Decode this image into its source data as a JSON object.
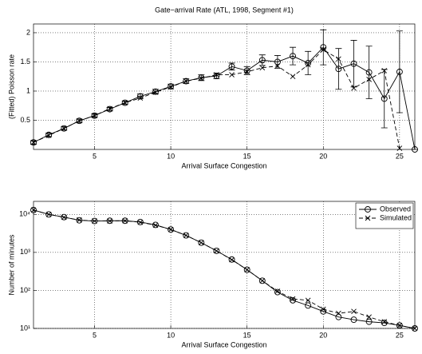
{
  "chart_data": [
    {
      "type": "line",
      "title": "Gate−arrival Rate (ATL, 1998, Segment #1)",
      "x_label": "Arrival Surface Congestion",
      "y_label": "(Fitted) Poisson rate",
      "x": [
        1,
        2,
        3,
        4,
        5,
        6,
        7,
        8,
        9,
        10,
        11,
        12,
        13,
        14,
        15,
        16,
        17,
        18,
        19,
        20,
        21,
        22,
        23,
        24,
        25,
        26
      ],
      "series": [
        {
          "color": "#000000",
          "marker": "circle",
          "dash": false,
          "values": [
            0.12,
            0.25,
            0.36,
            0.49,
            0.58,
            0.69,
            0.8,
            0.91,
            0.99,
            1.08,
            1.17,
            1.23,
            1.26,
            1.42,
            1.35,
            1.53,
            1.5,
            1.6,
            1.48,
            1.75,
            1.38,
            1.47,
            1.32,
            0.87,
            1.33,
            0
          ],
          "errors": [
            0.03,
            0.03,
            0.03,
            0.03,
            0.03,
            0.03,
            0.03,
            0.04,
            0.04,
            0.04,
            0.04,
            0.05,
            0.05,
            0.06,
            0.07,
            0.09,
            0.11,
            0.15,
            0.2,
            0.3,
            0.35,
            0.4,
            0.45,
            0.5,
            0.7,
            0
          ]
        },
        {
          "color": "#000000",
          "marker": "x",
          "dash": true,
          "values": [
            0.12,
            0.24,
            0.36,
            0.49,
            0.58,
            0.7,
            0.8,
            0.88,
            0.98,
            1.07,
            1.17,
            1.22,
            1.28,
            1.28,
            1.33,
            1.4,
            1.43,
            1.25,
            1.45,
            1.71,
            1.55,
            1.05,
            1.2,
            1.35,
            0.02,
            null
          ]
        }
      ],
      "xlim": [
        1,
        26
      ],
      "xticks": [
        5,
        10,
        15,
        20,
        25
      ],
      "ylim": [
        0,
        2.15
      ],
      "yticks": [
        0.5,
        1,
        1.5,
        2
      ],
      "grid": true
    },
    {
      "type": "line",
      "x_label": "Arrival Surface Congestion",
      "y_label": "Number of minutes",
      "x": [
        1,
        2,
        3,
        4,
        5,
        6,
        7,
        8,
        9,
        10,
        11,
        12,
        13,
        14,
        15,
        16,
        17,
        18,
        19,
        20,
        21,
        22,
        23,
        24,
        25,
        26
      ],
      "series": [
        {
          "name": "Observed",
          "color": "#000000",
          "marker": "circle",
          "dash": false,
          "values": [
            13000,
            10000,
            8500,
            7000,
            6700,
            6800,
            6800,
            6300,
            5300,
            4000,
            2800,
            1800,
            1100,
            650,
            350,
            180,
            90,
            55,
            40,
            28,
            20,
            17,
            15,
            14,
            12,
            10
          ]
        },
        {
          "name": "Simulated",
          "color": "#000000",
          "marker": "x",
          "dash": true,
          "values": [
            13000,
            10000,
            8400,
            7100,
            6700,
            6700,
            6800,
            6200,
            5200,
            4000,
            2800,
            1800,
            1100,
            640,
            350,
            180,
            95,
            60,
            55,
            32,
            25,
            28,
            20,
            15,
            12,
            10
          ]
        }
      ],
      "xlim": [
        1,
        26
      ],
      "xticks": [
        5,
        10,
        15,
        20,
        25
      ],
      "ylim": [
        10,
        22000
      ],
      "log_y": true,
      "yticks": [
        {
          "value": 10,
          "label": "10¹"
        },
        {
          "value": 100,
          "label": "10²"
        },
        {
          "value": 1000,
          "label": "10³"
        },
        {
          "value": 10000,
          "label": "10⁴"
        }
      ],
      "grid": true,
      "legend": "upper right"
    }
  ]
}
